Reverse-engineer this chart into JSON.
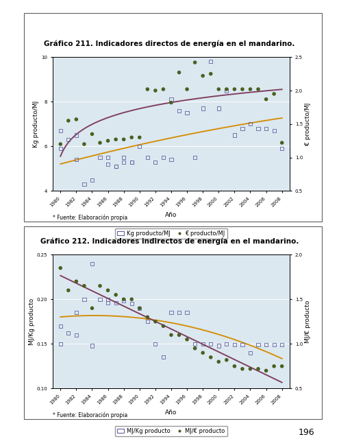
{
  "title1": "Gráfico 211. Indicadores directos de energía en el mandarino.",
  "title2": "Gráfico 212. Indicadores indirectos de energía en el mandarino.",
  "xlabel": "Año",
  "source_text": "* Fuente: Elaboración propia",
  "page_number": "196",
  "page_bg": "#ffffff",
  "plot_bg": "#dce8f0",
  "chart1": {
    "ylabel_left": "Kg producto/MJ",
    "ylabel_right": "€ producto/MJ",
    "ylim_left": [
      4,
      10
    ],
    "ylim_right": [
      0.5,
      2.5
    ],
    "yticks_left": [
      4,
      6,
      8,
      10
    ],
    "yticks_right": [
      0.5,
      1.0,
      1.5,
      2.0,
      2.5
    ],
    "xlim": [
      1979,
      2009
    ],
    "xticks": [
      1980,
      1982,
      1984,
      1986,
      1988,
      1990,
      1992,
      1994,
      1996,
      1998,
      2000,
      2002,
      2004,
      2006,
      2008
    ],
    "legend_label1": "Kg producto/MJ",
    "legend_label2": "€ producto/MJ",
    "scatter1_x": [
      1980,
      1980,
      1981,
      1982,
      1982,
      1983,
      1984,
      1985,
      1986,
      1986,
      1987,
      1987,
      1988,
      1988,
      1989,
      1989,
      1990,
      1991,
      1992,
      1993,
      1994,
      1994,
      1995,
      1996,
      1997,
      1998,
      1999,
      2000,
      2001,
      2002,
      2003,
      2004,
      2005,
      2006,
      2007,
      2008
    ],
    "scatter1_y": [
      5.9,
      6.7,
      6.3,
      5.4,
      6.5,
      4.3,
      4.5,
      5.5,
      5.5,
      5.2,
      5.1,
      5.1,
      5.3,
      5.5,
      5.3,
      5.3,
      6.0,
      5.5,
      5.3,
      5.5,
      8.1,
      5.4,
      7.6,
      7.5,
      5.5,
      7.7,
      9.8,
      7.7,
      8.5,
      6.5,
      6.8,
      7.0,
      6.8,
      6.8,
      6.7,
      5.9
    ],
    "scatter2_x": [
      1980,
      1981,
      1982,
      1983,
      1984,
      1985,
      1986,
      1987,
      1988,
      1989,
      1990,
      1991,
      1992,
      1993,
      1994,
      1995,
      1996,
      1997,
      1998,
      1999,
      2000,
      2001,
      2002,
      2003,
      2004,
      2005,
      2006,
      2007,
      2008
    ],
    "scatter2_y": [
      1.2,
      1.55,
      1.57,
      1.2,
      1.35,
      1.22,
      1.25,
      1.27,
      1.27,
      1.3,
      1.3,
      2.02,
      2.0,
      2.02,
      1.82,
      2.27,
      2.02,
      2.42,
      2.22,
      2.25,
      2.02,
      2.02,
      2.02,
      2.02,
      2.02,
      2.02,
      1.87,
      1.95,
      1.22
    ],
    "curve1_color": "#d4900a",
    "curve2_color": "#804060",
    "scatter1_color": "none",
    "scatter1_edge": "#6060a0",
    "scatter2_color": "#4a6020"
  },
  "chart2": {
    "ylabel_left": "MJ/Kg producto",
    "ylabel_right": "MJ/€ producto",
    "ylim_left": [
      0.1,
      0.25
    ],
    "ylim_right": [
      0.5,
      2.0
    ],
    "yticks_left": [
      0.1,
      0.15,
      0.2,
      0.25
    ],
    "yticks_right": [
      0.5,
      1.0,
      1.5,
      2.0
    ],
    "xlim": [
      1979,
      2009
    ],
    "xticks": [
      1980,
      1982,
      1984,
      1986,
      1988,
      1990,
      1992,
      1994,
      1996,
      1998,
      2000,
      2002,
      2004,
      2006,
      2008
    ],
    "legend_label1": "MJ/Kg producto",
    "legend_label2": "MJ/€ producto",
    "scatter1_x": [
      1980,
      1980,
      1981,
      1982,
      1982,
      1983,
      1984,
      1984,
      1985,
      1986,
      1986,
      1987,
      1988,
      1989,
      1990,
      1991,
      1992,
      1993,
      1994,
      1995,
      1996,
      1997,
      1998,
      1999,
      2000,
      2001,
      2002,
      2003,
      2004,
      2005,
      2006,
      2007,
      2008
    ],
    "scatter1_y": [
      0.17,
      0.15,
      0.162,
      0.16,
      0.185,
      0.2,
      0.24,
      0.148,
      0.2,
      0.196,
      0.2,
      0.196,
      0.198,
      0.195,
      0.19,
      0.175,
      0.15,
      0.135,
      0.185,
      0.185,
      0.185,
      0.15,
      0.15,
      0.15,
      0.148,
      0.15,
      0.149,
      0.149,
      0.14,
      0.149,
      0.149,
      0.149,
      0.149
    ],
    "scatter2_x": [
      1980,
      1981,
      1982,
      1983,
      1984,
      1985,
      1986,
      1987,
      1988,
      1989,
      1990,
      1991,
      1992,
      1993,
      1994,
      1995,
      1996,
      1997,
      1998,
      1999,
      2000,
      2001,
      2002,
      2003,
      2004,
      2005,
      2006,
      2007,
      2008
    ],
    "scatter2_y": [
      1.85,
      1.6,
      1.7,
      1.65,
      1.4,
      1.65,
      1.6,
      1.55,
      1.5,
      1.5,
      1.4,
      1.3,
      1.25,
      1.2,
      1.1,
      1.1,
      1.05,
      0.95,
      0.9,
      0.85,
      0.8,
      0.82,
      0.75,
      0.72,
      0.72,
      0.72,
      0.7,
      0.75,
      0.75
    ],
    "curve1_color": "#d4900a",
    "curve2_color": "#804060",
    "scatter1_color": "none",
    "scatter1_edge": "#6060a0",
    "scatter2_color": "#4a6020"
  }
}
